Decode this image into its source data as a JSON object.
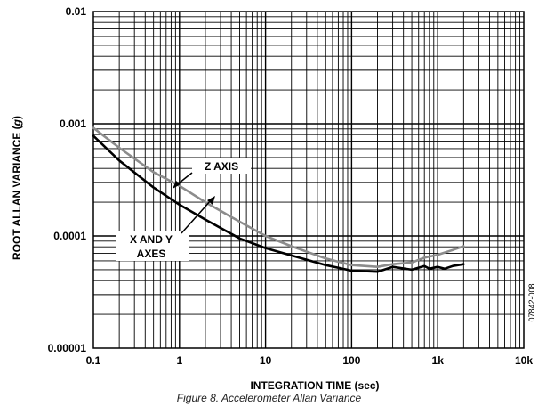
{
  "figure_code": "07842-008",
  "caption": "Figure 8. Accelerometer Allan Variance",
  "chart_data": {
    "type": "line",
    "xlabel": "INTEGRATION TIME (sec)",
    "ylabel_prefix": "ROOT ALLAN VARIANCE (",
    "ylabel_unit": "g",
    "ylabel_suffix": ")",
    "x_scale": "log",
    "y_scale": "log",
    "xlim": [
      0.1,
      10000
    ],
    "ylim": [
      1e-05,
      0.01
    ],
    "grid": true,
    "x_ticks": [
      {
        "value": 0.1,
        "label": "0.1"
      },
      {
        "value": 1,
        "label": "1"
      },
      {
        "value": 10,
        "label": "10"
      },
      {
        "value": 100,
        "label": "100"
      },
      {
        "value": 1000,
        "label": "1k"
      },
      {
        "value": 10000,
        "label": "10k"
      }
    ],
    "y_ticks": [
      {
        "value": 1e-05,
        "label": "0.00001"
      },
      {
        "value": 0.0001,
        "label": "0.0001"
      },
      {
        "value": 0.001,
        "label": "0.001"
      },
      {
        "value": 0.01,
        "label": "0.01"
      }
    ],
    "series": [
      {
        "name": "X AND Y AXES",
        "label_lines": [
          "X AND Y",
          "AXES"
        ],
        "color": "#000000",
        "points": [
          [
            0.1,
            0.00078
          ],
          [
            0.2,
            0.00047
          ],
          [
            0.5,
            0.00027
          ],
          [
            1,
            0.00019
          ],
          [
            2,
            0.00014
          ],
          [
            5,
            9.5e-05
          ],
          [
            10,
            7.8e-05
          ],
          [
            20,
            6.7e-05
          ],
          [
            50,
            5.5e-05
          ],
          [
            100,
            4.9e-05
          ],
          [
            200,
            4.8e-05
          ],
          [
            300,
            5.3e-05
          ],
          [
            500,
            5e-05
          ],
          [
            700,
            5.4e-05
          ],
          [
            800,
            5.1e-05
          ],
          [
            1000,
            5.3e-05
          ],
          [
            1200,
            5.1e-05
          ],
          [
            1500,
            5.4e-05
          ],
          [
            2000,
            5.6e-05
          ]
        ]
      },
      {
        "name": "Z AXIS",
        "label_lines": [
          "Z AXIS"
        ],
        "color": "#8c8c8c",
        "points": [
          [
            0.1,
            0.00092
          ],
          [
            0.2,
            0.00061
          ],
          [
            0.5,
            0.00037
          ],
          [
            1,
            0.00028
          ],
          [
            2,
            0.0002
          ],
          [
            5,
            0.000134
          ],
          [
            10,
            0.0001
          ],
          [
            20,
            8.1e-05
          ],
          [
            50,
            6.3e-05
          ],
          [
            100,
            5.5e-05
          ],
          [
            200,
            5.3e-05
          ],
          [
            300,
            5.6e-05
          ],
          [
            500,
            5.8e-05
          ],
          [
            700,
            6.4e-05
          ],
          [
            1000,
            6.8e-05
          ],
          [
            1500,
            7.5e-05
          ],
          [
            2000,
            8.1e-05
          ]
        ]
      }
    ]
  }
}
